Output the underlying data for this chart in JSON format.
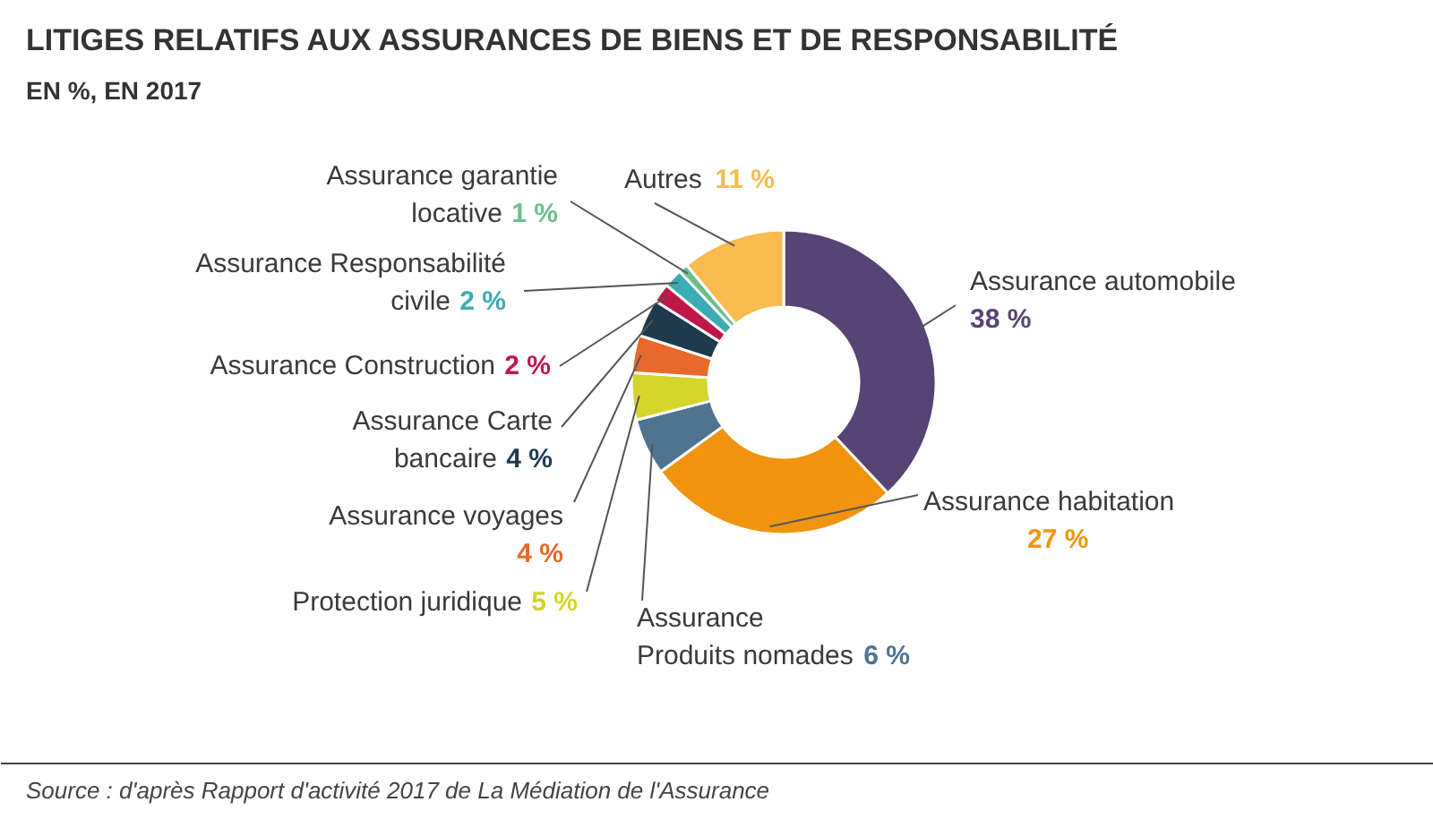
{
  "chart_data": {
    "type": "donut",
    "title": "LITIGES RELATIFS AUX ASSURANCES DE BIENS ET DE RESPONSABILITÉ",
    "subtitle": "EN  %, EN 2017",
    "categories": [
      "Assurance automobile",
      "Assurance habitation",
      "Assurance Produits nomades",
      "Protection juridique",
      "Assurance voyages",
      "Assurance Carte bancaire",
      "Assurance Construction",
      "Assurance Responsabilité civile",
      "Assurance garantie locative",
      "Autres"
    ],
    "values": [
      38,
      27,
      6,
      5,
      4,
      4,
      2,
      2,
      1,
      11
    ],
    "colors": [
      "#574474",
      "#f0940f",
      "#4e7490",
      "#d4d42a",
      "#e8692a",
      "#1f3a4d",
      "#c0174a",
      "#3aacb4",
      "#6cbf8a",
      "#f9bb50"
    ],
    "value_labels": [
      "38 %",
      "27 %",
      "6 %",
      "5 %",
      "4 %",
      "4 %",
      "2 %",
      "2 %",
      "1 %",
      "11 %"
    ],
    "annotations": [
      "Source : d'après Rapport d'activité 2017 de La Médiation de l'Assurance"
    ]
  }
}
